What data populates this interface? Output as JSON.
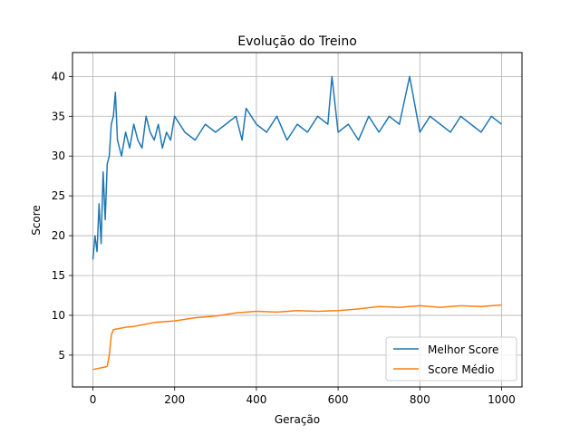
{
  "chart_data": {
    "type": "line",
    "title": "Evolução do Treino",
    "xlabel": "Geração",
    "ylabel": "Score",
    "xlim": [
      -50,
      1050
    ],
    "ylim": [
      1.0,
      43.0
    ],
    "xticks": [
      0,
      200,
      400,
      600,
      800,
      1000
    ],
    "yticks": [
      5,
      10,
      15,
      20,
      25,
      30,
      35,
      40
    ],
    "grid": true,
    "legend_position": "lower-right",
    "series": [
      {
        "name": "Melhor Score",
        "color": "#1f77b4",
        "x": [
          0,
          5,
          10,
          15,
          20,
          25,
          30,
          35,
          40,
          45,
          50,
          55,
          60,
          70,
          80,
          90,
          100,
          110,
          120,
          130,
          140,
          150,
          160,
          170,
          180,
          190,
          200,
          225,
          250,
          275,
          300,
          325,
          350,
          365,
          375,
          400,
          425,
          450,
          475,
          500,
          525,
          550,
          575,
          585,
          600,
          625,
          650,
          675,
          700,
          725,
          750,
          775,
          800,
          825,
          850,
          875,
          900,
          925,
          950,
          975,
          1000
        ],
        "y": [
          17,
          20,
          18,
          24,
          19,
          28,
          22,
          29,
          30,
          34,
          35,
          38,
          32,
          30,
          33,
          31,
          34,
          32,
          31,
          35,
          33,
          32,
          34,
          31,
          33,
          32,
          35,
          33,
          32,
          34,
          33,
          34,
          35,
          32,
          36,
          34,
          33,
          35,
          32,
          34,
          33,
          35,
          34,
          40,
          33,
          34,
          32,
          35,
          33,
          35,
          34,
          40,
          33,
          35,
          34,
          33,
          35,
          34,
          33,
          35,
          34
        ]
      },
      {
        "name": "Score Médio",
        "color": "#ff7f0e",
        "x": [
          0,
          10,
          20,
          30,
          35,
          40,
          45,
          50,
          60,
          80,
          100,
          120,
          150,
          200,
          250,
          300,
          350,
          400,
          450,
          500,
          550,
          600,
          650,
          700,
          750,
          800,
          850,
          900,
          950,
          1000
        ],
        "y": [
          3.2,
          3.3,
          3.4,
          3.5,
          3.6,
          5.0,
          7.5,
          8.2,
          8.3,
          8.5,
          8.6,
          8.8,
          9.1,
          9.3,
          9.7,
          9.9,
          10.3,
          10.5,
          10.4,
          10.6,
          10.5,
          10.6,
          10.8,
          11.1,
          11.0,
          11.2,
          11.0,
          11.2,
          11.1,
          11.3
        ]
      }
    ]
  }
}
